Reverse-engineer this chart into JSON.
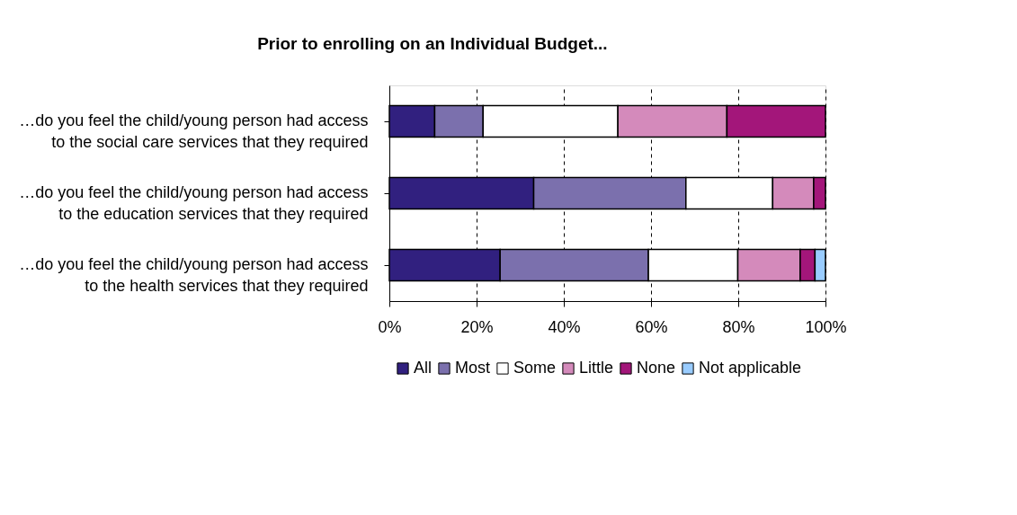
{
  "chart_data": {
    "type": "bar",
    "orientation": "horizontal",
    "stacked": true,
    "title": "Prior to enrolling on an Individual Budget...",
    "categories": [
      "…do you feel the child/young person had access\nto the social care services that they required",
      "…do you feel the child/young person had access\nto the education services that they required",
      "…do you feel the child/young person had access\nto the health services that they required"
    ],
    "series": [
      {
        "name": "All",
        "color": "#31207f",
        "values": [
          10.4,
          33.1,
          25.4
        ]
      },
      {
        "name": "Most",
        "color": "#7b70ad",
        "values": [
          11.1,
          34.9,
          34.0
        ]
      },
      {
        "name": "Some",
        "color": "#ffffff",
        "values": [
          30.9,
          19.9,
          20.5
        ]
      },
      {
        "name": "Little",
        "color": "#d48abb",
        "values": [
          25.0,
          9.4,
          14.3
        ]
      },
      {
        "name": "None",
        "color": "#a3167a",
        "values": [
          22.6,
          2.7,
          3.4
        ]
      },
      {
        "name": "Not applicable",
        "color": "#99ccff",
        "values": [
          null,
          null,
          2.4
        ]
      }
    ],
    "xlim": [
      0,
      100
    ],
    "xticks": [
      {
        "value": 0,
        "label": "0%"
      },
      {
        "value": 20,
        "label": "20%"
      },
      {
        "value": 40,
        "label": "40%"
      },
      {
        "value": 60,
        "label": "60%"
      },
      {
        "value": 80,
        "label": "80%"
      },
      {
        "value": 100,
        "label": "100%"
      }
    ],
    "grid": "x",
    "legend": "bottom"
  }
}
